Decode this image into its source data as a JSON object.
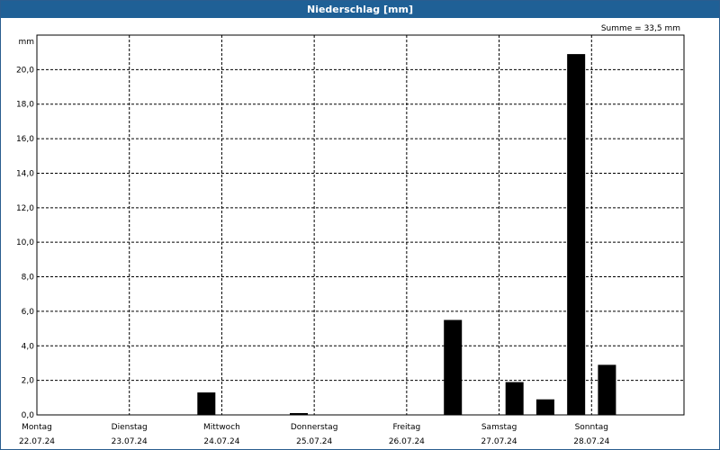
{
  "window": {
    "title": "Niederschlag [mm]"
  },
  "chart_data": {
    "type": "bar",
    "title": "Niederschlag [mm]",
    "summary": "Summe = 33,5 mm",
    "ylabel": "mm",
    "ylim": [
      0,
      22
    ],
    "yticks": [
      "0,0",
      "2,0",
      "4,0",
      "6,0",
      "8,0",
      "10,0",
      "12,0",
      "14,0",
      "16,0",
      "18,0",
      "20,0"
    ],
    "grid": true,
    "days": [
      {
        "name": "Montag",
        "date": "22.07.24"
      },
      {
        "name": "Dienstag",
        "date": "23.07.24"
      },
      {
        "name": "Mittwoch",
        "date": "24.07.24"
      },
      {
        "name": "Donnerstag",
        "date": "25.07.24"
      },
      {
        "name": "Freitag",
        "date": "26.07.24"
      },
      {
        "name": "Samstag",
        "date": "27.07.24"
      },
      {
        "name": "Sonntag",
        "date": "28.07.24"
      }
    ],
    "bars_per_day": 3,
    "values": [
      0,
      0,
      0,
      0,
      0,
      1.3,
      0,
      0,
      0.1,
      0,
      0,
      0,
      0,
      5.5,
      0,
      1.9,
      0.9,
      20.9,
      2.9,
      0,
      0
    ],
    "bar_color": "#000000"
  }
}
